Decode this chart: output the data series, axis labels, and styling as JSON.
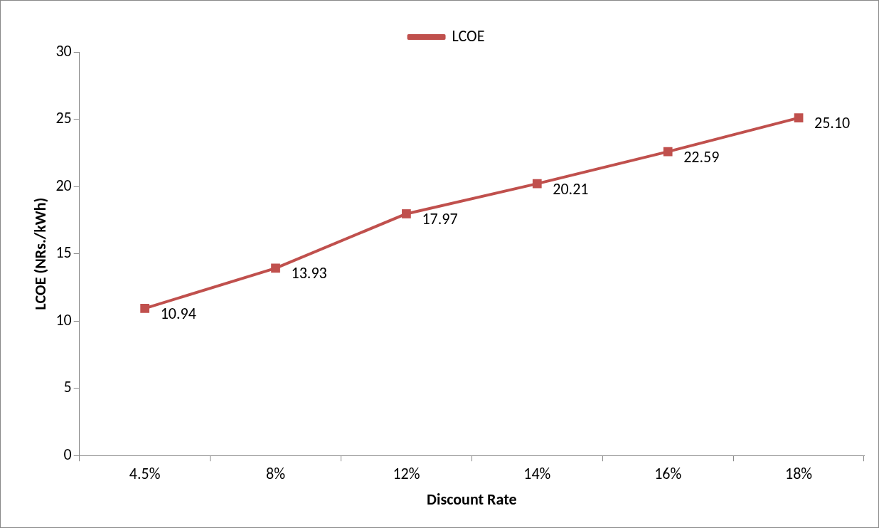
{
  "chart_data": {
    "type": "line",
    "xlabel": "Discount Rate",
    "ylabel": "LCOE (NRs./kWh)",
    "categories": [
      "4.5%",
      "8%",
      "12%",
      "14%",
      "16%",
      "18%"
    ],
    "series": [
      {
        "name": "LCOE",
        "color": "#c0504d",
        "values": [
          10.94,
          13.93,
          17.97,
          20.21,
          22.59,
          25.1
        ],
        "value_labels": [
          "10.94",
          "13.93",
          "17.97",
          "20.21",
          "22.59",
          "25.10"
        ]
      }
    ],
    "ylim": [
      0,
      30
    ],
    "yticks": [
      0,
      5,
      10,
      15,
      20,
      25,
      30
    ],
    "grid": false,
    "legend": "top",
    "marker": "square",
    "line_style": "solid",
    "data_labels": true
  }
}
